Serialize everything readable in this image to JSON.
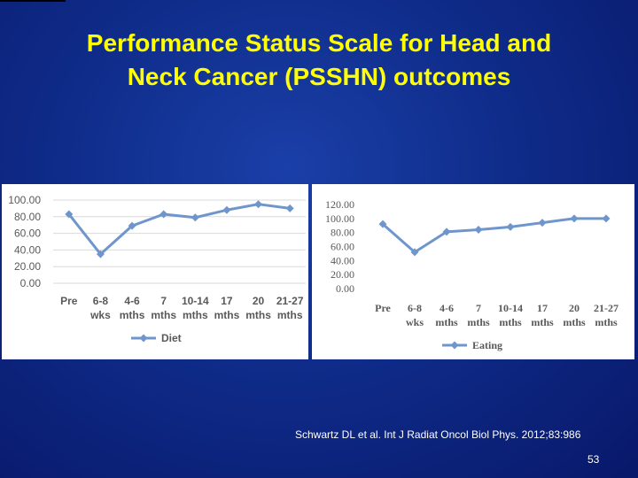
{
  "slide": {
    "title_line1": "Performance Status Scale for Head and",
    "title_line2": "Neck Cancer (PSSHN) outcomes",
    "citation": "Schwartz DL et al. Int J Radiat Oncol Biol Phys. 2012;83:986",
    "page_number": "53"
  },
  "colors": {
    "series_line": "#6f96cc",
    "grid": "#d9d9d9",
    "axis_text": "#595959",
    "title": "#ffff00"
  },
  "chart_data": [
    {
      "type": "line",
      "categories": [
        [
          "Pre"
        ],
        [
          "6-8",
          "wks"
        ],
        [
          "4-6",
          "mths"
        ],
        [
          "7",
          "mths"
        ],
        [
          "10-14",
          "mths"
        ],
        [
          "17",
          "mths"
        ],
        [
          "20",
          "mths"
        ],
        [
          "21-27",
          "mths"
        ]
      ],
      "series": [
        {
          "name": "Diet",
          "values": [
            83,
            35,
            69,
            83,
            79,
            88,
            95,
            90
          ]
        }
      ],
      "yticks": [
        "100.00",
        "80.00",
        "60.00",
        "40.00",
        "20.00",
        "0.00"
      ],
      "ylim": [
        0,
        100
      ],
      "grid": true,
      "legend": "bottom"
    },
    {
      "type": "line",
      "categories": [
        [
          "Pre"
        ],
        [
          "6-8",
          "wks"
        ],
        [
          "4-6",
          "mths"
        ],
        [
          "7",
          "mths"
        ],
        [
          "10-14",
          "mths"
        ],
        [
          "17",
          "mths"
        ],
        [
          "20",
          "mths"
        ],
        [
          "21-27",
          "mths"
        ]
      ],
      "series": [
        {
          "name": "Eating",
          "values": [
            92,
            52,
            81,
            84,
            88,
            94,
            100,
            100
          ]
        }
      ],
      "yticks": [
        "120.00",
        "100.00",
        "80.00",
        "60.00",
        "40.00",
        "20.00",
        "0.00"
      ],
      "ylim": [
        0,
        120
      ],
      "grid": false,
      "legend": "bottom"
    }
  ]
}
